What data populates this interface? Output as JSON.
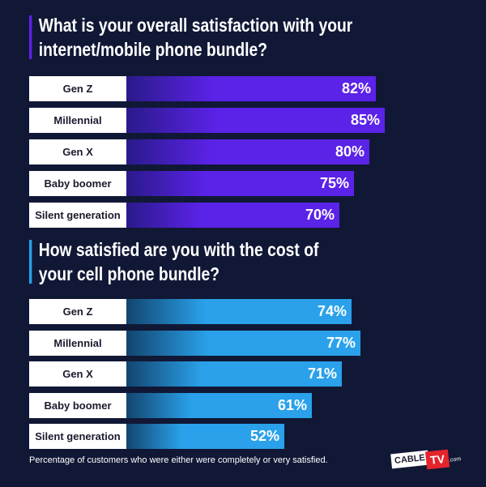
{
  "chart_data": [
    {
      "type": "bar",
      "orientation": "horizontal",
      "title": "What is your overall satisfaction with your\ninternet/mobile phone bundle?",
      "categories": [
        "Gen Z",
        "Millennial",
        "Gen X",
        "Baby boomer",
        "Silent generation"
      ],
      "values": [
        82,
        85,
        80,
        75,
        70
      ],
      "value_labels": [
        "82%",
        "85%",
        "80%",
        "75%",
        "70%"
      ],
      "unit": "%",
      "color": "#5b22e8",
      "grid": false,
      "xlabel": "",
      "ylabel": ""
    },
    {
      "type": "bar",
      "orientation": "horizontal",
      "title": "How satisfied are you with the cost of\nyour cell phone bundle?",
      "categories": [
        "Gen Z",
        "Millennial",
        "Gen X",
        "Baby boomer",
        "Silent generation"
      ],
      "values": [
        74,
        77,
        71,
        61,
        52
      ],
      "value_labels": [
        "74%",
        "77%",
        "71%",
        "61%",
        "52%"
      ],
      "unit": "%",
      "color": "#2aa1ea",
      "grid": false,
      "xlabel": "",
      "ylabel": ""
    }
  ],
  "footnote": "Percentage of customers who were either were completely or very satisfied.",
  "logo": {
    "cable": "CABLE",
    "tv": "TV",
    "suffix": ".com"
  },
  "colors": {
    "background": "#111836",
    "purple": "#5b22e8",
    "blue": "#2aa1ea"
  }
}
